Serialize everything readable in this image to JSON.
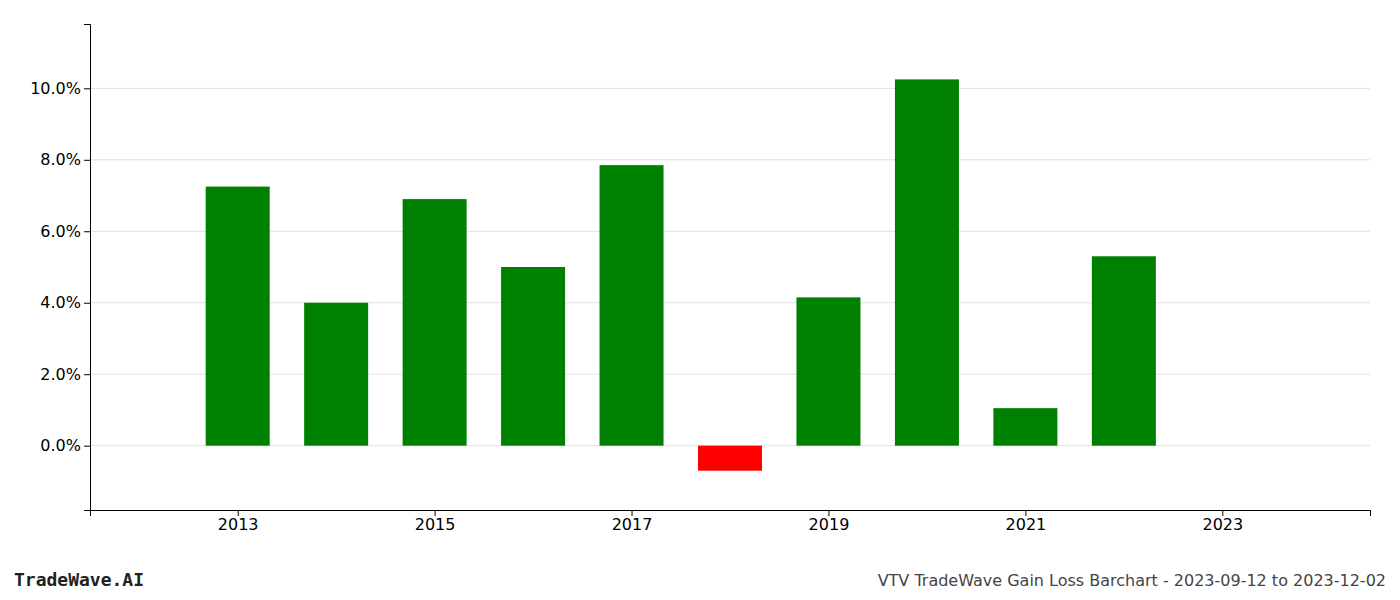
{
  "chart_data": {
    "type": "bar",
    "x": [
      2013,
      2014,
      2015,
      2016,
      2017,
      2018,
      2019,
      2020,
      2021,
      2022
    ],
    "values": [
      0.0725,
      0.04,
      0.069,
      0.05,
      0.0785,
      -0.007,
      0.0415,
      0.1025,
      0.0105,
      0.053
    ],
    "colors": [
      "#008000",
      "#008000",
      "#008000",
      "#008000",
      "#008000",
      "#ff0000",
      "#008000",
      "#008000",
      "#008000",
      "#008000"
    ],
    "xlim": [
      2011.5,
      2024.5
    ],
    "xticks": [
      2013,
      2015,
      2017,
      2019,
      2021,
      2023
    ],
    "ylim": [
      -0.018,
      0.118
    ],
    "yticks": [
      {
        "value": 0.0,
        "label": "0.0%"
      },
      {
        "value": 0.02,
        "label": "2.0%"
      },
      {
        "value": 0.04,
        "label": "4.0%"
      },
      {
        "value": 0.06,
        "label": "6.0%"
      },
      {
        "value": 0.08,
        "label": "8.0%"
      },
      {
        "value": 0.1,
        "label": "10.0%"
      }
    ],
    "grid": true,
    "annotations": [
      "TradeWave.AI",
      "VTV TradeWave Gain Loss Barchart - 2023-09-12 to 2023-12-02"
    ]
  }
}
